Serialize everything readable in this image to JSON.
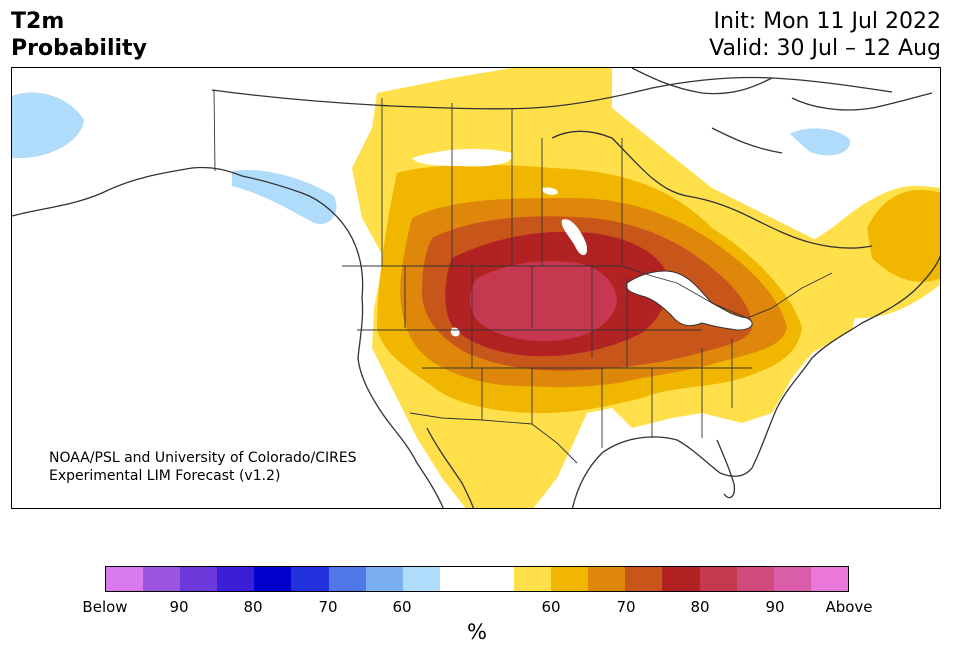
{
  "header": {
    "variable": "T2m",
    "product": "Probability",
    "init": "Init: Mon 11 Jul 2022",
    "valid": "Valid: 30 Jul – 12 Aug"
  },
  "credit": {
    "line1": "NOAA/PSL and University of Colorado/CIRES",
    "line2": "Experimental LIM Forecast (v1.2)"
  },
  "colorbar": {
    "colors": [
      "#d87aee",
      "#9b55e0",
      "#6c3adb",
      "#3b1fd6",
      "#0000cc",
      "#2233dd",
      "#5176e8",
      "#7ab0f0",
      "#aedcfa",
      "#ffffff",
      "#ffffff",
      "#ffe04a",
      "#f1b600",
      "#de870a",
      "#c8561a",
      "#b22222",
      "#c5384f",
      "#d04a7c",
      "#da5daa",
      "#e978d8"
    ],
    "tick_labels": [
      "Below",
      "90",
      "80",
      "70",
      "60",
      "60",
      "70",
      "80",
      "90",
      "Above"
    ],
    "unit": "%"
  },
  "map": {
    "region": "North America",
    "legend_colors": {
      "light_blue": "#aedcfa",
      "yellow": "#ffe04a",
      "gold": "#f1b600",
      "orange": "#de870a",
      "dark_orange": "#c8561a",
      "red": "#b22222",
      "crimson": "#c5384f"
    }
  }
}
